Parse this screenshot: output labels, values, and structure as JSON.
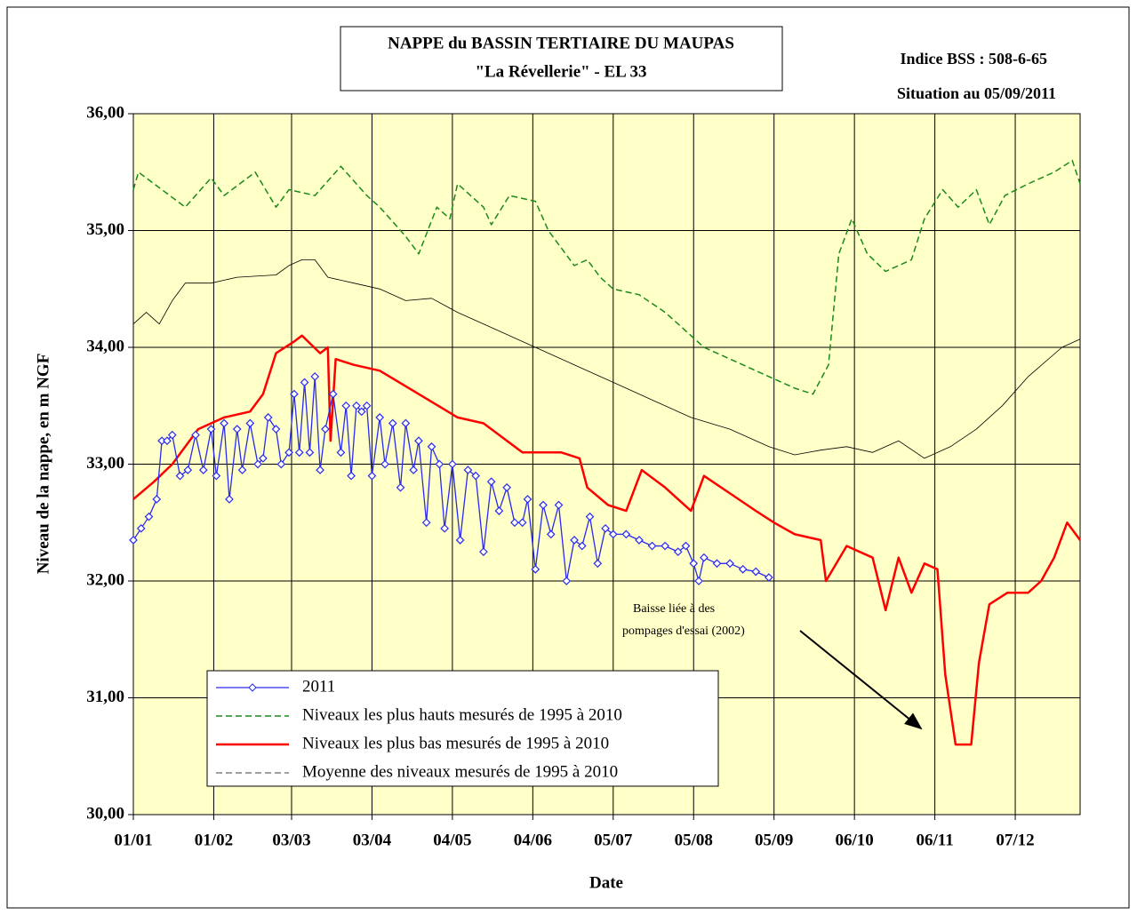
{
  "chart_data": {
    "type": "line",
    "title": [
      "NAPPE du BASSIN TERTIAIRE DU MAUPAS",
      "\"La Révellerie\" - EL 33"
    ],
    "subtitle": [
      "Indice BSS : 508-6-65",
      "Situation au 05/09/2011"
    ],
    "x_label": "Date",
    "y_label": "Niveau de la nappe, en m NGF",
    "annotation": [
      "Baisse liée à des",
      "pompages d'essai (2002)"
    ],
    "xlim": [
      0,
      365
    ],
    "xticks": [
      {
        "value": 0,
        "label": "01/01"
      },
      {
        "value": 31,
        "label": "01/02"
      },
      {
        "value": 61,
        "label": "03/03"
      },
      {
        "value": 92,
        "label": "03/04"
      },
      {
        "value": 123,
        "label": "04/05"
      },
      {
        "value": 154,
        "label": "04/06"
      },
      {
        "value": 185,
        "label": "05/07"
      },
      {
        "value": 216,
        "label": "05/08"
      },
      {
        "value": 247,
        "label": "05/09"
      },
      {
        "value": 278,
        "label": "06/10"
      },
      {
        "value": 309,
        "label": "06/11"
      },
      {
        "value": 340,
        "label": "07/12"
      }
    ],
    "ylim": [
      30,
      36
    ],
    "yticks": [
      {
        "value": 30,
        "label": "30,00"
      },
      {
        "value": 31,
        "label": "31,00"
      },
      {
        "value": 32,
        "label": "32,00"
      },
      {
        "value": 33,
        "label": "33,00"
      },
      {
        "value": 34,
        "label": "34,00"
      },
      {
        "value": 35,
        "label": "35,00"
      },
      {
        "value": 36,
        "label": "36,00"
      }
    ],
    "grid": true,
    "series": [
      {
        "name": "2011",
        "color": "#2a2af0",
        "style": "markers",
        "x": [
          0,
          3,
          6,
          9,
          11,
          13,
          15,
          18,
          21,
          24,
          27,
          30,
          32,
          35,
          37,
          40,
          42,
          45,
          48,
          50,
          52,
          55,
          57,
          60,
          62,
          64,
          66,
          68,
          70,
          72,
          74,
          77,
          80,
          82,
          84,
          86,
          88,
          90,
          92,
          95,
          97,
          100,
          103,
          105,
          108,
          110,
          113,
          115,
          118,
          120,
          123,
          126,
          129,
          132,
          135,
          138,
          141,
          144,
          147,
          150,
          152,
          155,
          158,
          161,
          164,
          167,
          170,
          173,
          176,
          179,
          182,
          185,
          190,
          195,
          200,
          205,
          210,
          213,
          216,
          218,
          220,
          225,
          230,
          235,
          240,
          245
        ],
        "values": [
          32.35,
          32.45,
          32.55,
          32.7,
          33.2,
          33.2,
          33.25,
          32.9,
          32.95,
          33.25,
          32.95,
          33.3,
          32.9,
          33.35,
          32.7,
          33.3,
          32.95,
          33.35,
          33.0,
          33.05,
          33.4,
          33.3,
          33.0,
          33.1,
          33.6,
          33.1,
          33.7,
          33.1,
          33.75,
          32.95,
          33.3,
          33.6,
          33.1,
          33.5,
          32.9,
          33.5,
          33.45,
          33.5,
          32.9,
          33.4,
          33.0,
          33.35,
          32.8,
          33.35,
          32.95,
          33.2,
          32.5,
          33.15,
          33.0,
          32.45,
          33.0,
          32.35,
          32.95,
          32.9,
          32.25,
          32.85,
          32.6,
          32.8,
          32.5,
          32.5,
          32.7,
          32.1,
          32.65,
          32.4,
          32.65,
          32.0,
          32.35,
          32.3,
          32.55,
          32.15,
          32.45,
          32.4,
          32.4,
          32.35,
          32.3,
          32.3,
          32.25,
          32.3,
          32.15,
          32.0,
          32.2,
          32.15,
          32.15,
          32.1,
          32.08,
          32.03
        ]
      },
      {
        "name": "Niveaux les plus hauts mesurés de 1995 à 2010",
        "color": "#1a8a1a",
        "style": "dashed",
        "x": [
          0,
          2,
          20,
          30,
          35,
          47,
          55,
          60,
          70,
          80,
          90,
          95,
          105,
          110,
          117,
          122,
          125,
          135,
          138,
          145,
          155,
          160,
          170,
          175,
          180,
          185,
          195,
          205,
          215,
          220,
          225,
          235,
          245,
          255,
          262,
          268,
          272,
          277,
          283,
          290,
          300,
          305,
          312,
          318,
          325,
          330,
          336,
          345,
          355,
          362,
          365
        ],
        "values": [
          35.35,
          35.5,
          35.2,
          35.45,
          35.3,
          35.5,
          35.2,
          35.35,
          35.3,
          35.55,
          35.3,
          35.2,
          34.95,
          34.8,
          35.2,
          35.1,
          35.4,
          35.2,
          35.05,
          35.3,
          35.25,
          35.0,
          34.7,
          34.75,
          34.6,
          34.5,
          34.45,
          34.3,
          34.1,
          34.0,
          33.95,
          33.85,
          33.75,
          33.65,
          33.6,
          33.85,
          34.8,
          35.1,
          34.8,
          34.65,
          34.75,
          35.1,
          35.35,
          35.2,
          35.35,
          35.05,
          35.3,
          35.4,
          35.5,
          35.6,
          35.4
        ]
      },
      {
        "name": "Niveaux les plus bas mesurés de 1995 à 2010",
        "color": "#ff0000",
        "style": "thick",
        "x": [
          0,
          8,
          15,
          25,
          35,
          45,
          50,
          55,
          62,
          65,
          72,
          75,
          76,
          78,
          85,
          95,
          110,
          125,
          135,
          150,
          165,
          172,
          175,
          183,
          190,
          196,
          205,
          215,
          220,
          230,
          240,
          247,
          255,
          265,
          267,
          275,
          285,
          290,
          295,
          300,
          305,
          310,
          313,
          317,
          323,
          326,
          330,
          337,
          345,
          350,
          355,
          360,
          365
        ],
        "values": [
          32.7,
          32.85,
          33.0,
          33.3,
          33.4,
          33.45,
          33.6,
          33.95,
          34.05,
          34.1,
          33.95,
          34.0,
          33.2,
          33.9,
          33.85,
          33.8,
          33.6,
          33.4,
          33.35,
          33.1,
          33.1,
          33.05,
          32.8,
          32.65,
          32.6,
          32.95,
          32.8,
          32.6,
          32.9,
          32.75,
          32.6,
          32.5,
          32.4,
          32.35,
          32.0,
          32.3,
          32.2,
          31.75,
          32.2,
          31.9,
          32.15,
          32.1,
          31.2,
          30.6,
          30.6,
          31.3,
          31.8,
          31.9,
          31.9,
          32.0,
          32.2,
          32.5,
          32.35
        ]
      },
      {
        "name": "Moyenne des niveaux mesurés de 1995 à 2010",
        "color": "#000000",
        "style": "thin",
        "x": [
          0,
          5,
          10,
          15,
          20,
          30,
          40,
          55,
          60,
          65,
          70,
          75,
          85,
          95,
          105,
          115,
          125,
          140,
          155,
          170,
          185,
          200,
          215,
          230,
          245,
          255,
          265,
          275,
          285,
          295,
          305,
          315,
          325,
          335,
          345,
          358,
          365
        ],
        "values": [
          34.2,
          34.3,
          34.2,
          34.4,
          34.55,
          34.55,
          34.6,
          34.62,
          34.7,
          34.75,
          34.75,
          34.6,
          34.55,
          34.5,
          34.4,
          34.42,
          34.3,
          34.15,
          34.0,
          33.85,
          33.7,
          33.55,
          33.4,
          33.3,
          33.15,
          33.08,
          33.12,
          33.15,
          33.1,
          33.2,
          33.05,
          33.15,
          33.3,
          33.5,
          33.75,
          34.0,
          34.07
        ]
      }
    ]
  }
}
